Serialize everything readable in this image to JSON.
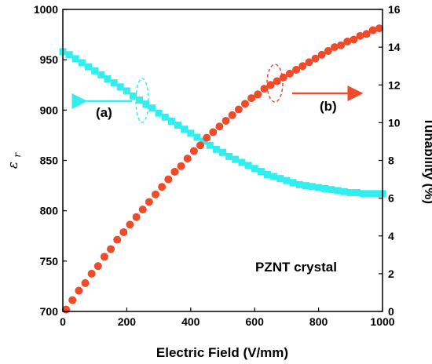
{
  "chart_data": {
    "type": "scatter",
    "xlabel": "Electric Field (V/mm)",
    "ylabel_left": "ε",
    "ylabel_left_subscript": "r",
    "ylabel_right": "Tunability (%)",
    "xlim": [
      0,
      1000
    ],
    "ylim_left": [
      700,
      1000
    ],
    "ylim_right": [
      0,
      16
    ],
    "x_ticks": [
      "0",
      "200",
      "400",
      "600",
      "800",
      "1000"
    ],
    "y_left_ticks": [
      "700",
      "750",
      "800",
      "850",
      "900",
      "950",
      "1000"
    ],
    "y_right_ticks": [
      "0",
      "2",
      "4",
      "6",
      "8",
      "10",
      "12",
      "14",
      "16"
    ],
    "annotation": "PZNT crystal",
    "label_a": "(a)",
    "label_b": "(b)",
    "series": [
      {
        "axis": "left",
        "marker": "square",
        "color": "#33eeee",
        "x": [
          0,
          20,
          40,
          60,
          80,
          100,
          120,
          140,
          160,
          180,
          200,
          220,
          240,
          260,
          280,
          300,
          320,
          340,
          360,
          380,
          400,
          420,
          440,
          460,
          480,
          500,
          520,
          540,
          560,
          580,
          600,
          620,
          640,
          660,
          680,
          700,
          720,
          740,
          760,
          780,
          800,
          820,
          840,
          860,
          880,
          900,
          920,
          940,
          960,
          980,
          1000
        ],
        "values": [
          958,
          955,
          951,
          947,
          943,
          939,
          935,
          931,
          927,
          923,
          919,
          914,
          910,
          906,
          902,
          897,
          893,
          889,
          885,
          881,
          877,
          873,
          869,
          865,
          861,
          858,
          854,
          851,
          848,
          845,
          842,
          839,
          836,
          834,
          832,
          830,
          828,
          826,
          825,
          824,
          823,
          822,
          821,
          820,
          819,
          818,
          818,
          817,
          817,
          817,
          817
        ]
      },
      {
        "axis": "right",
        "marker": "circle",
        "color": "#ee4b2b",
        "x": [
          10,
          30,
          50,
          70,
          90,
          110,
          130,
          150,
          170,
          190,
          210,
          230,
          250,
          270,
          290,
          310,
          330,
          350,
          370,
          390,
          410,
          430,
          450,
          470,
          490,
          510,
          530,
          550,
          570,
          590,
          610,
          630,
          650,
          670,
          690,
          710,
          730,
          750,
          770,
          790,
          810,
          830,
          850,
          870,
          890,
          910,
          930,
          950,
          970,
          990
        ],
        "values": [
          0.1,
          0.6,
          1.1,
          1.5,
          2.0,
          2.4,
          2.9,
          3.3,
          3.8,
          4.2,
          4.6,
          5.0,
          5.4,
          5.8,
          6.2,
          6.6,
          7.0,
          7.4,
          7.7,
          8.1,
          8.5,
          8.8,
          9.2,
          9.5,
          9.8,
          10.1,
          10.4,
          10.7,
          11.0,
          11.3,
          11.5,
          11.8,
          12.0,
          12.2,
          12.4,
          12.6,
          12.8,
          13.0,
          13.2,
          13.4,
          13.6,
          13.8,
          14.0,
          14.1,
          14.3,
          14.4,
          14.6,
          14.7,
          14.9,
          15.0
        ]
      }
    ]
  }
}
